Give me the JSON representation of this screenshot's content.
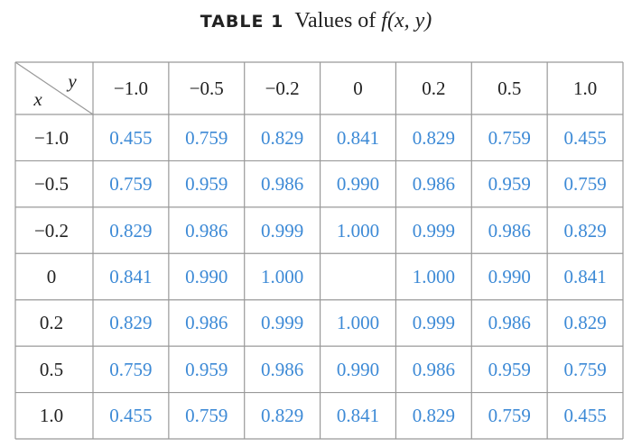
{
  "header": {
    "label": "TABLE 1",
    "caption": "Values of",
    "function": "f(x, y)"
  },
  "table": {
    "corner": {
      "column_label": "y",
      "row_label": "x"
    },
    "columns": [
      "−1.0",
      "−0.5",
      "−0.2",
      "0",
      "0.2",
      "0.5",
      "1.0"
    ],
    "rows": [
      {
        "header": "−1.0",
        "cells": [
          "0.455",
          "0.759",
          "0.829",
          "0.841",
          "0.829",
          "0.759",
          "0.455"
        ]
      },
      {
        "header": "−0.5",
        "cells": [
          "0.759",
          "0.959",
          "0.986",
          "0.990",
          "0.986",
          "0.959",
          "0.759"
        ]
      },
      {
        "header": "−0.2",
        "cells": [
          "0.829",
          "0.986",
          "0.999",
          "1.000",
          "0.999",
          "0.986",
          "0.829"
        ]
      },
      {
        "header": "0",
        "cells": [
          "0.841",
          "0.990",
          "1.000",
          null,
          "1.000",
          "0.990",
          "0.841"
        ]
      },
      {
        "header": "0.2",
        "cells": [
          "0.829",
          "0.986",
          "0.999",
          "1.000",
          "0.999",
          "0.986",
          "0.829"
        ]
      },
      {
        "header": "0.5",
        "cells": [
          "0.759",
          "0.959",
          "0.986",
          "0.990",
          "0.986",
          "0.959",
          "0.759"
        ]
      },
      {
        "header": "1.0",
        "cells": [
          "0.455",
          "0.759",
          "0.829",
          "0.841",
          "0.829",
          "0.759",
          "0.455"
        ]
      }
    ]
  }
}
